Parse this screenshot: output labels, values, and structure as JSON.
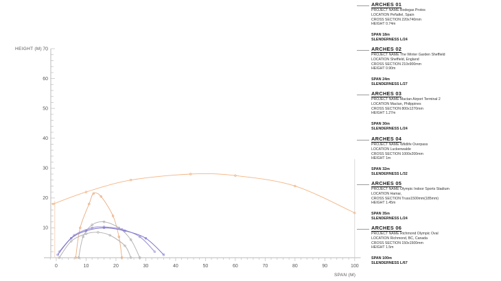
{
  "chart_data": {
    "type": "line",
    "xlabel": "SPAN (M)",
    "ylabel": "HEIGHT (M)",
    "xlim": [
      -4,
      102
    ],
    "ylim": [
      0,
      70
    ],
    "x_ticks": [
      0,
      10,
      20,
      30,
      40,
      50,
      60,
      70,
      80,
      90,
      100
    ],
    "y_ticks": [
      10,
      20,
      30,
      40,
      50,
      60,
      70
    ],
    "grid": false,
    "series": [
      {
        "name": "ARCHES 06",
        "color": "#f2b07c",
        "points": [
          [
            -1,
            18
          ],
          [
            10,
            22
          ],
          [
            25,
            26
          ],
          [
            45,
            28
          ],
          [
            60,
            27.5
          ],
          [
            80,
            24
          ],
          [
            100,
            15
          ]
        ]
      },
      {
        "name": "ARCHES 04",
        "color": "#e9a878",
        "points": [
          [
            6.5,
            0
          ],
          [
            8,
            10
          ],
          [
            11,
            18
          ],
          [
            12.5,
            21.5
          ],
          [
            15,
            20.5
          ],
          [
            19,
            14
          ],
          [
            21,
            7
          ],
          [
            22,
            0
          ]
        ]
      },
      {
        "name": "ARCHES 03",
        "color": "#a9a9a9",
        "points": [
          [
            7.5,
            0
          ],
          [
            9,
            7
          ],
          [
            12,
            11
          ],
          [
            16,
            12
          ],
          [
            21,
            10
          ],
          [
            25,
            6
          ],
          [
            28,
            0
          ]
        ]
      },
      {
        "name": "ARCHES 02",
        "color": "#9b92d6",
        "points": [
          [
            1,
            2
          ],
          [
            6,
            7.5
          ],
          [
            12,
            10
          ],
          [
            16,
            10.3
          ],
          [
            22,
            9.5
          ],
          [
            28,
            7
          ],
          [
            33,
            2
          ]
        ]
      },
      {
        "name": "ARCHES 05",
        "color": "#7d74cc",
        "points": [
          [
            0.5,
            1
          ],
          [
            5,
            6.5
          ],
          [
            10,
            9
          ],
          [
            16,
            10
          ],
          [
            23,
            9
          ],
          [
            30,
            6.5
          ],
          [
            36,
            1
          ]
        ]
      },
      {
        "name": "ARCHES 01",
        "color": "#b3b3b3",
        "points": [
          [
            1,
            0
          ],
          [
            5,
            5.5
          ],
          [
            10,
            8
          ],
          [
            14,
            8.5
          ],
          [
            18,
            7.5
          ],
          [
            23,
            4
          ],
          [
            25,
            0
          ]
        ]
      }
    ]
  },
  "legend": [
    {
      "title": "ARCHES 01",
      "project": "PROJECT NAME Bodegas Protos",
      "location": "LOCATION Peñafiel, Spain",
      "section": "CROSS SECTION 220x740mm",
      "height": "HEIGHT 0.74m",
      "span": "SPAN 18m",
      "slenderness": "SLENDERNESS L/24"
    },
    {
      "title": "ARCHES 02",
      "project": "PROJECT NAME The Winter Garden Sheffield",
      "location": "LOCATION Sheffield, England",
      "section": "CROSS SECTION 210x900mm",
      "height": "HEIGHT 0.90m",
      "span": "SPAN 24m",
      "slenderness": "SLENDERNESS L/27"
    },
    {
      "title": "ARCHES 03",
      "project": "PROJECT NAME Mactan Airport Terminal 2",
      "location": "LOCATION Mactan, Philippines",
      "section": "CROSS SECTION 800x1270mm",
      "height": "HEIGHT 1.27m",
      "span": "SPAN 30m",
      "slenderness": "SLENDERNESS L/24"
    },
    {
      "title": "ARCHES 04",
      "project": "PROJECT NAME Wildlife Overpass",
      "location": "LOCATION Luckenwalde",
      "section": "CROSS SECTION 1000x200mm",
      "height": "HEIGHT 1m",
      "span": "SPAN 32m",
      "slenderness": "SLENDERNESS L/32"
    },
    {
      "title": "ARCHES 05",
      "project": "PROJECT NAME Olympic Indoor Sports Stadium",
      "location": "LOCATION Hamar,",
      "section": "CROSS SECTION Truss1500mm(185mm)",
      "height": "HEIGHT 1.45m",
      "span": "SPAN 35m",
      "slenderness": "SLENDERNESS L/24"
    },
    {
      "title": "ARCHES 06",
      "project": "PROJECT NAME Richmond Olympic Oval",
      "location": "LOCATION Richmond, BC, Canada",
      "section": "CROSS SECTION 150x1500mm",
      "height": "HEIGHT 1.5m",
      "span": "SPAN 100m",
      "slenderness": "SLENDERNESS L/67"
    }
  ]
}
